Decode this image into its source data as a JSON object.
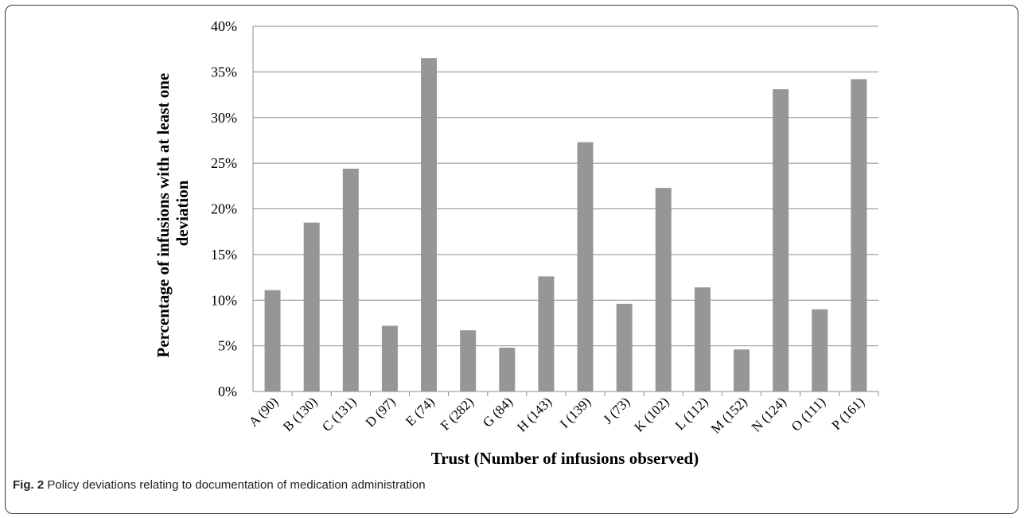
{
  "figure": {
    "label": "Fig. 2",
    "caption": "Policy deviations relating to documentation of medication administration"
  },
  "chart_data": {
    "type": "bar",
    "title": "",
    "xlabel": "Trust (Number of infusions observed)",
    "ylabel_lines": [
      "Percentage of infusions with at least one",
      "deviation"
    ],
    "categories": [
      "A (90)",
      "B (130)",
      "C (131)",
      "D (97)",
      "E (74)",
      "F (282)",
      "G (84)",
      "H (143)",
      "I (139)",
      "J (73)",
      "K (102)",
      "L (112)",
      "M (152)",
      "N (124)",
      "O (111)",
      "P (161)"
    ],
    "values": [
      11.1,
      18.5,
      24.4,
      7.2,
      36.5,
      6.7,
      4.8,
      12.6,
      27.3,
      9.6,
      22.3,
      11.4,
      4.6,
      33.1,
      9.0,
      34.2
    ],
    "ylim": [
      0,
      40
    ],
    "yticks": [
      "0%",
      "5%",
      "10%",
      "15%",
      "20%",
      "25%",
      "30%",
      "35%",
      "40%"
    ],
    "grid": true,
    "bar_color": "#969696",
    "grid_color": "#8c8c8c"
  }
}
